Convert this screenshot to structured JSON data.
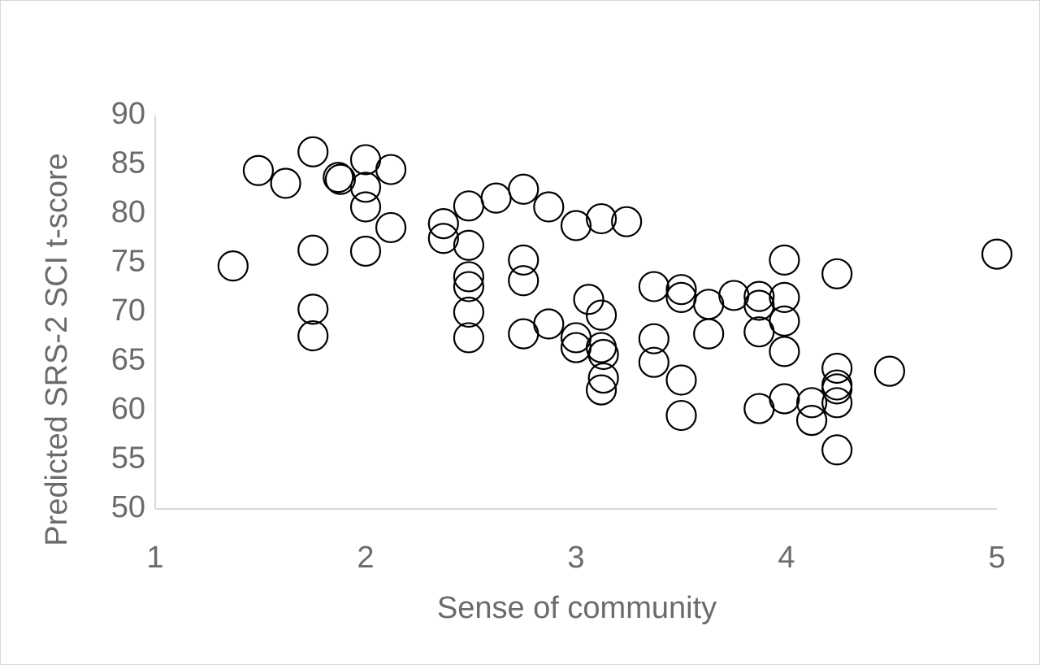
{
  "chart_data": {
    "type": "scatter",
    "x_label": "Sense of community",
    "y_label": "Predicted SRS-2 SCI t-score",
    "xlim": [
      1,
      5
    ],
    "xticks": [
      1,
      2,
      3,
      4,
      5
    ],
    "ylim": [
      50,
      90
    ],
    "yticks": [
      50,
      55,
      60,
      65,
      70,
      75,
      80,
      85,
      90
    ],
    "grid": false,
    "series": [
      {
        "color": "#000000",
        "x": [
          1.37,
          1.49,
          1.62,
          1.75,
          1.75,
          1.75,
          1.75,
          1.87,
          1.88,
          2.0,
          2.0,
          2.0,
          2.0,
          2.12,
          2.12,
          2.37,
          2.37,
          2.49,
          2.49,
          2.49,
          2.49,
          2.49,
          2.49,
          2.62,
          2.75,
          2.75,
          2.75,
          2.75,
          2.87,
          2.87,
          3.0,
          3.0,
          3.0,
          3.06,
          3.12,
          3.12,
          3.12,
          3.13,
          3.13,
          3.12,
          3.24,
          3.37,
          3.37,
          3.37,
          3.5,
          3.5,
          3.5,
          3.5,
          3.63,
          3.63,
          3.75,
          3.87,
          3.87,
          3.87,
          3.87,
          3.99,
          3.99,
          3.99,
          3.99,
          3.99,
          4.12,
          4.12,
          4.24,
          4.24,
          4.24,
          4.24,
          4.24,
          4.24,
          4.49,
          5.0
        ],
        "values": [
          74.7,
          84.4,
          83.1,
          86.3,
          76.3,
          70.3,
          67.6,
          83.7,
          83.5,
          85.5,
          82.7,
          80.7,
          76.2,
          84.5,
          78.6,
          79.0,
          77.5,
          80.8,
          76.8,
          73.6,
          72.6,
          70.0,
          67.4,
          81.6,
          82.5,
          75.3,
          73.2,
          67.8,
          80.7,
          68.8,
          78.8,
          67.4,
          66.4,
          71.3,
          79.5,
          69.7,
          66.4,
          65.7,
          63.3,
          62.1,
          79.2,
          72.6,
          67.3,
          64.9,
          72.3,
          71.5,
          63.1,
          59.5,
          70.8,
          67.8,
          71.7,
          71.6,
          70.7,
          68.0,
          60.2,
          75.3,
          71.5,
          69.1,
          66.0,
          61.2,
          60.8,
          59.0,
          73.9,
          64.3,
          62.6,
          62.2,
          60.8,
          56.0,
          64.0,
          75.9
        ]
      }
    ]
  }
}
